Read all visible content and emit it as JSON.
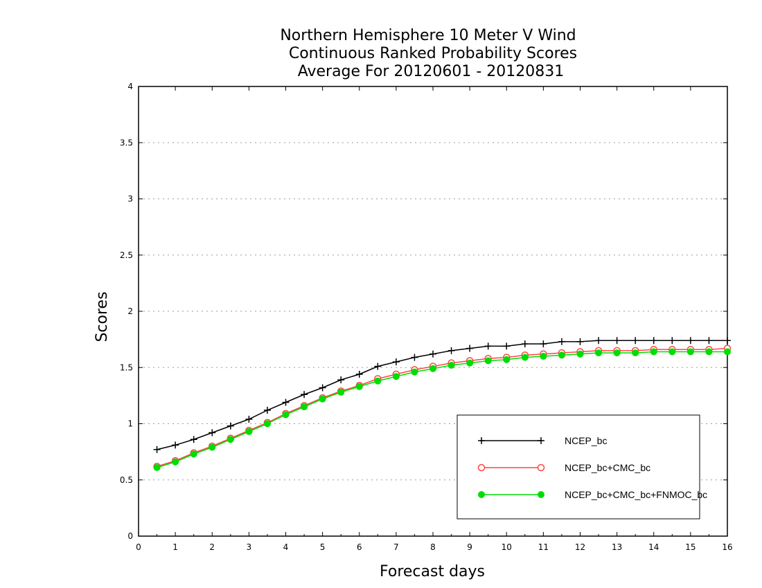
{
  "chart_data": {
    "type": "line",
    "title": [
      "Northern Hemisphere 10 Meter V Wind",
      "Continuous Ranked Probability Scores",
      "Average For 20120601 - 20120831"
    ],
    "xlabel": "Forecast days",
    "ylabel": "Scores",
    "xlim": [
      0,
      16
    ],
    "ylim": [
      0,
      4
    ],
    "xticks": [
      0,
      1,
      2,
      3,
      4,
      5,
      6,
      7,
      8,
      9,
      10,
      11,
      12,
      13,
      14,
      15,
      16
    ],
    "yticks": [
      0,
      0.5,
      1,
      1.5,
      2,
      2.5,
      3,
      3.5,
      4
    ],
    "ytick_labels": [
      "0",
      "0.5",
      "1",
      "1.5",
      "2",
      "2.5",
      "3",
      "3.5",
      "4"
    ],
    "grid": "horizontal dotted",
    "legend_position": "lower-right",
    "x": [
      0.5,
      1.0,
      1.5,
      2.0,
      2.5,
      3.0,
      3.5,
      4.0,
      4.5,
      5.0,
      5.5,
      6.0,
      6.5,
      7.0,
      7.5,
      8.0,
      8.5,
      9.0,
      9.5,
      10.0,
      10.5,
      11.0,
      11.5,
      12.0,
      12.5,
      13.0,
      13.5,
      14.0,
      14.5,
      15.0,
      15.5,
      16.0
    ],
    "series": [
      {
        "name": "NCEP_bc",
        "color": "#000000",
        "marker": "plus",
        "values": [
          0.77,
          0.81,
          0.86,
          0.92,
          0.98,
          1.04,
          1.12,
          1.19,
          1.26,
          1.32,
          1.39,
          1.44,
          1.51,
          1.55,
          1.59,
          1.62,
          1.65,
          1.67,
          1.69,
          1.69,
          1.71,
          1.71,
          1.73,
          1.73,
          1.74,
          1.74,
          1.74,
          1.74,
          1.74,
          1.74,
          1.74,
          1.74
        ]
      },
      {
        "name": "NCEP_bc+CMC_bc",
        "color": "#ff4444",
        "marker": "open-circle",
        "values": [
          0.62,
          0.67,
          0.74,
          0.8,
          0.87,
          0.94,
          1.01,
          1.09,
          1.16,
          1.23,
          1.29,
          1.34,
          1.4,
          1.44,
          1.48,
          1.51,
          1.54,
          1.56,
          1.58,
          1.59,
          1.61,
          1.62,
          1.63,
          1.64,
          1.65,
          1.65,
          1.65,
          1.66,
          1.66,
          1.66,
          1.66,
          1.67
        ]
      },
      {
        "name": "NCEP_bc+CMC_bc+FNMOC_bc",
        "color": "#00dd00",
        "marker": "filled-circle",
        "values": [
          0.61,
          0.66,
          0.73,
          0.79,
          0.86,
          0.93,
          1.0,
          1.08,
          1.15,
          1.22,
          1.28,
          1.33,
          1.38,
          1.42,
          1.46,
          1.49,
          1.52,
          1.54,
          1.56,
          1.57,
          1.59,
          1.6,
          1.61,
          1.62,
          1.63,
          1.63,
          1.63,
          1.64,
          1.64,
          1.64,
          1.64,
          1.64
        ]
      }
    ]
  }
}
